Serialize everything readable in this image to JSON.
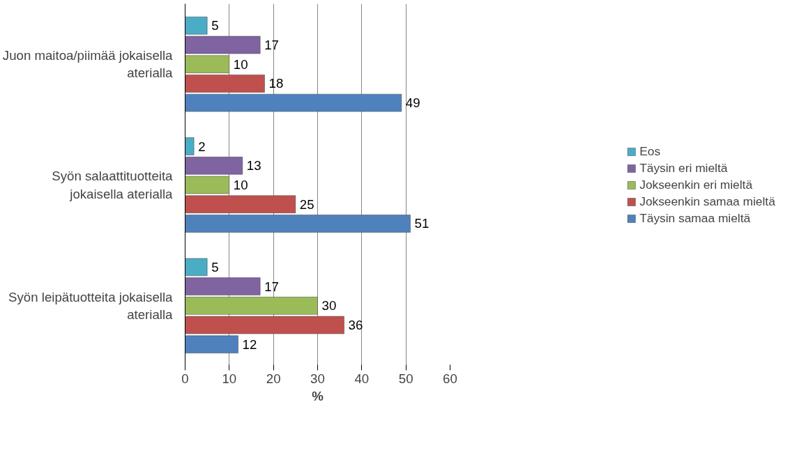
{
  "chart_data": {
    "type": "bar",
    "orientation": "horizontal",
    "categories": [
      "Juon maitoa/piimää jokaisella aterialla",
      "Syön salaattituotteita jokaisella aterialla",
      "Syön leipätuotteita jokaisella aterialla"
    ],
    "series": [
      {
        "name": "Eos",
        "color": "#4bacc6",
        "values": [
          5,
          2,
          5
        ]
      },
      {
        "name": "Täysin eri mieltä",
        "color": "#8064a2",
        "values": [
          17,
          13,
          17
        ]
      },
      {
        "name": "Jokseenkin eri mieltä",
        "color": "#9bbb59",
        "values": [
          10,
          10,
          30
        ]
      },
      {
        "name": "Jokseenkin samaa mieltä",
        "color": "#c0504d",
        "values": [
          18,
          25,
          36
        ]
      },
      {
        "name": "Täysin samaa mieltä",
        "color": "#4f81bd",
        "values": [
          49,
          51,
          12
        ]
      }
    ],
    "xlim": [
      0,
      60
    ],
    "xticks": [
      0,
      10,
      20,
      30,
      40,
      50,
      60
    ],
    "xlabel": "%",
    "grid": "x",
    "legend": "right",
    "data_labels": true
  }
}
